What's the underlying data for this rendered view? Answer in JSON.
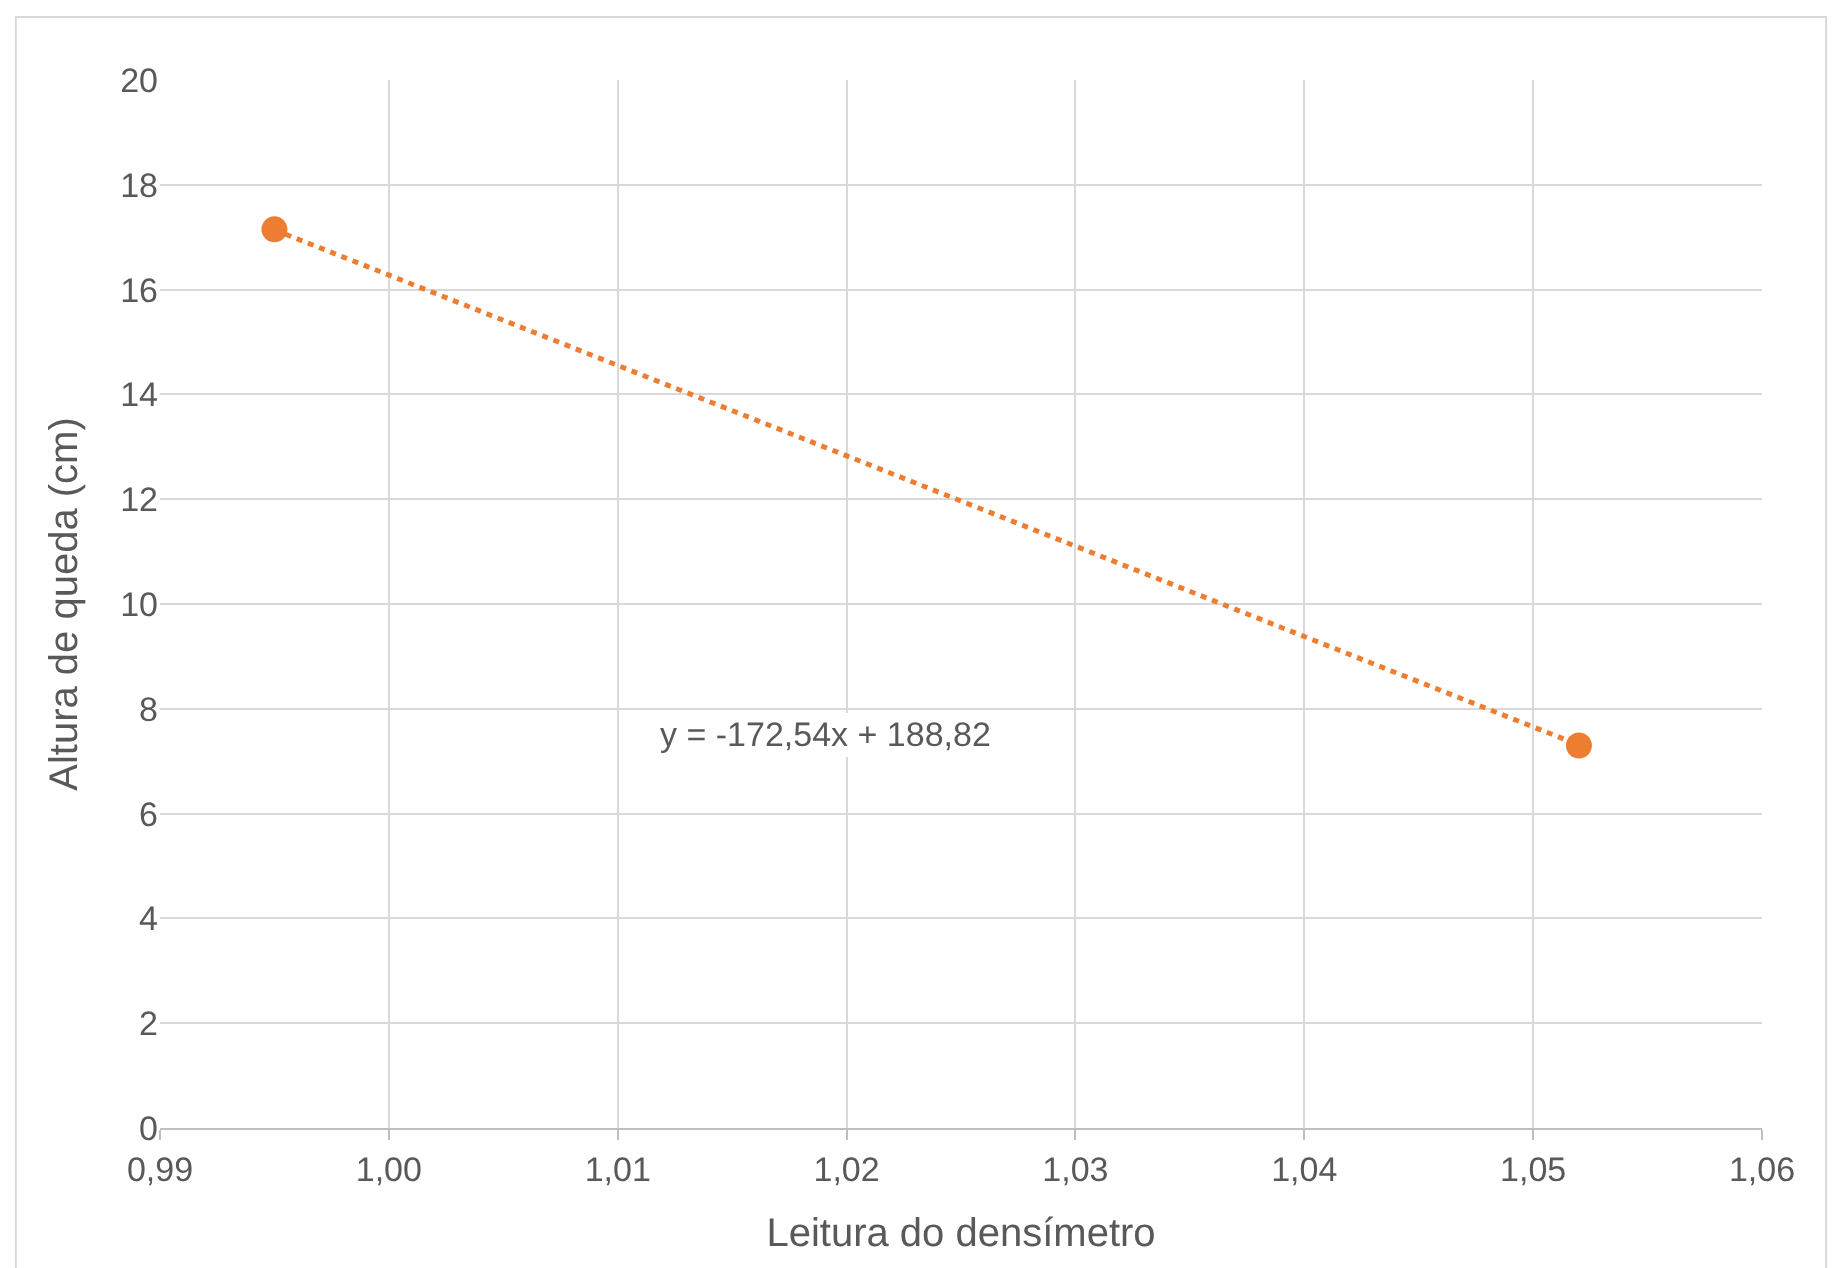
{
  "chart_data": {
    "type": "scatter",
    "xlabel": "Leitura do densímetro",
    "ylabel": "Altura de queda (cm)",
    "series": [
      {
        "color": "#ed7d31",
        "values": [
          17.15,
          7.3
        ],
        "marker": "circle"
      },
      {
        "type": "line",
        "color": "#ed7d31",
        "values": [
          17.14,
          7.31
        ],
        "marker": "none",
        "line_style": "dotted"
      }
    ],
    "x": [
      0.995,
      1.052
    ],
    "xlim": [
      0.99,
      1.06
    ],
    "xticks": [
      {
        "value": 0.99,
        "label": "0,99"
      },
      {
        "value": 1.0,
        "label": "1,00"
      },
      {
        "value": 1.01,
        "label": "1,01"
      },
      {
        "value": 1.02,
        "label": "1,02"
      },
      {
        "value": 1.03,
        "label": "1,03"
      },
      {
        "value": 1.04,
        "label": "1,04"
      },
      {
        "value": 1.05,
        "label": "1,05"
      },
      {
        "value": 1.06,
        "label": "1,06"
      }
    ],
    "ylim": [
      0,
      20
    ],
    "yticks": [
      0,
      2,
      4,
      6,
      8,
      10,
      12,
      14,
      16,
      18,
      20
    ],
    "annotations": [
      "y = -172,54x + 188,82"
    ],
    "grid": true
  }
}
